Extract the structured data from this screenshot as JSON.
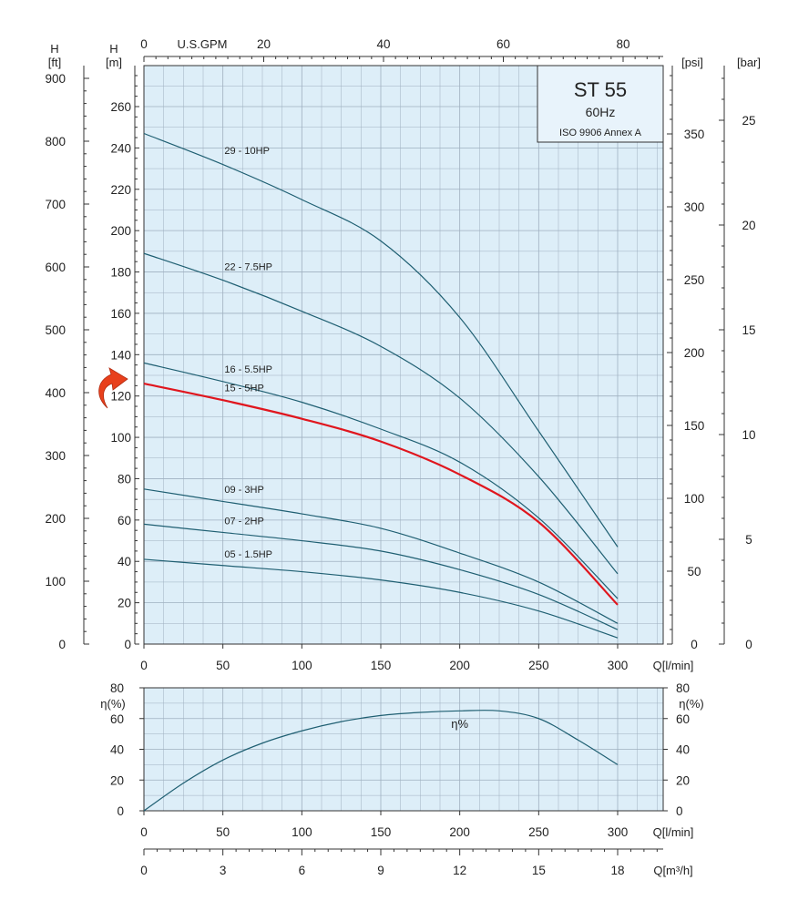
{
  "colors": {
    "plot_bg": "#ddeef8",
    "grid": "#9fb0c0",
    "curve": "#1f5f72",
    "highlight": "#e0161e",
    "arrow": "#e8401c"
  },
  "chart_data": [
    {
      "type": "line",
      "info_box": {
        "title": "ST 55",
        "frequency": "60Hz",
        "standard": "ISO 9906 Annex A"
      },
      "x": [
        0,
        50,
        100,
        150,
        200,
        250,
        300
      ],
      "xlabel": "Q[l/min]",
      "xlim": [
        0,
        325
      ],
      "x_ticks": [
        "0",
        "50",
        "100",
        "150",
        "200",
        "250",
        "300"
      ],
      "ylabel": "H [m]",
      "ylabel_parts": [
        "H",
        "[m]"
      ],
      "ylim": [
        0,
        276
      ],
      "y_ticks": [
        "0",
        "20",
        "40",
        "60",
        "80",
        "100",
        "120",
        "140",
        "160",
        "180",
        "200",
        "220",
        "240",
        "260"
      ],
      "top_axis": {
        "label": "U.S.GPM",
        "ticks": [
          "0",
          "20",
          "40",
          "60",
          "80"
        ],
        "values": [
          0,
          20,
          40,
          60,
          80
        ]
      },
      "left_axis_ft": {
        "label_parts": [
          "H",
          "[ft]"
        ],
        "ticks": [
          "0",
          "100",
          "200",
          "300",
          "400",
          "500",
          "600",
          "700",
          "800",
          "900"
        ],
        "values": [
          0,
          100,
          200,
          300,
          400,
          500,
          600,
          700,
          800,
          900
        ]
      },
      "right_axis_psi": {
        "label": "[psi]",
        "ticks": [
          "0",
          "50",
          "100",
          "150",
          "200",
          "250",
          "300",
          "350"
        ],
        "values": [
          0,
          50,
          100,
          150,
          200,
          250,
          300,
          350
        ]
      },
      "right_axis_bar": {
        "label": "[bar]",
        "ticks": [
          "0",
          "5",
          "10",
          "15",
          "20",
          "25"
        ],
        "values": [
          0,
          5,
          10,
          15,
          20,
          25
        ]
      },
      "grid": true,
      "highlighted_series": "15 - 5HP",
      "series": [
        {
          "name": "29 - 10HP",
          "values": [
            247,
            232,
            215,
            195,
            158,
            103,
            47
          ]
        },
        {
          "name": "22 - 7.5HP",
          "values": [
            189,
            176,
            161,
            144,
            119,
            81,
            34
          ]
        },
        {
          "name": "16 - 5.5HP",
          "values": [
            136,
            127,
            117,
            104,
            88,
            61,
            22
          ]
        },
        {
          "name": "15 - 5HP",
          "values": [
            126,
            118,
            109,
            98,
            82,
            59,
            19
          ]
        },
        {
          "name": "09 - 3HP",
          "values": [
            75,
            69,
            63,
            56,
            44,
            30,
            10
          ]
        },
        {
          "name": "07 - 2HP",
          "values": [
            58,
            54,
            50,
            45,
            36,
            24,
            7
          ]
        },
        {
          "name": "05 - 1.5HP",
          "values": [
            41,
            38,
            35,
            31,
            25,
            16,
            3
          ]
        }
      ]
    },
    {
      "type": "line",
      "x": [
        0,
        25,
        50,
        75,
        100,
        125,
        150,
        175,
        200,
        225,
        250,
        275,
        300
      ],
      "xlabel": "Q[l/min]",
      "xlim": [
        0,
        325
      ],
      "x_ticks": [
        "0",
        "50",
        "100",
        "150",
        "200",
        "250",
        "300"
      ],
      "ylabel": "η(%)",
      "ylim": [
        0,
        80
      ],
      "y_ticks": [
        "0",
        "20",
        "40",
        "60",
        "80"
      ],
      "grid": true,
      "series": [
        {
          "name": "η%",
          "values": [
            0,
            18,
            33,
            44,
            52,
            58,
            62,
            64,
            65,
            65,
            60,
            46,
            30
          ]
        }
      ]
    }
  ],
  "bottom_axis": {
    "label": "Q[m³/h]",
    "ticks": [
      "0",
      "3",
      "6",
      "9",
      "12",
      "15",
      "18"
    ],
    "values": [
      0,
      3,
      6,
      9,
      12,
      15,
      18
    ]
  }
}
